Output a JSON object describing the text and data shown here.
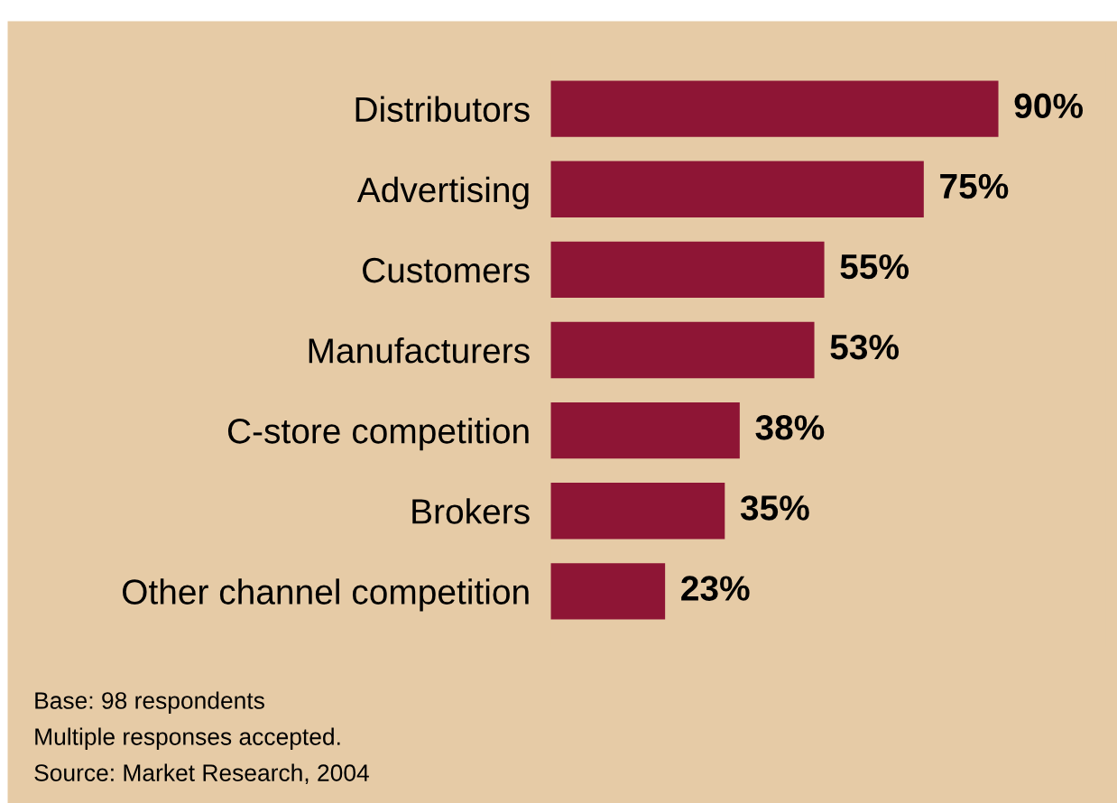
{
  "chart_data": {
    "type": "bar",
    "orientation": "horizontal",
    "categories": [
      "Distributors",
      "Advertising",
      "Customers",
      "Manufacturers",
      "C-store competition",
      "Brokers",
      "Other channel competition"
    ],
    "values": [
      90,
      75,
      55,
      53,
      38,
      35,
      23
    ],
    "value_labels": [
      "90%",
      "75%",
      "55%",
      "53%",
      "38%",
      "35%",
      "23%"
    ],
    "color": "#8e1535",
    "annotations": [
      "Base: 98 respondents",
      "Multiple responses accepted.",
      "Source: Market Research, 2004"
    ]
  }
}
